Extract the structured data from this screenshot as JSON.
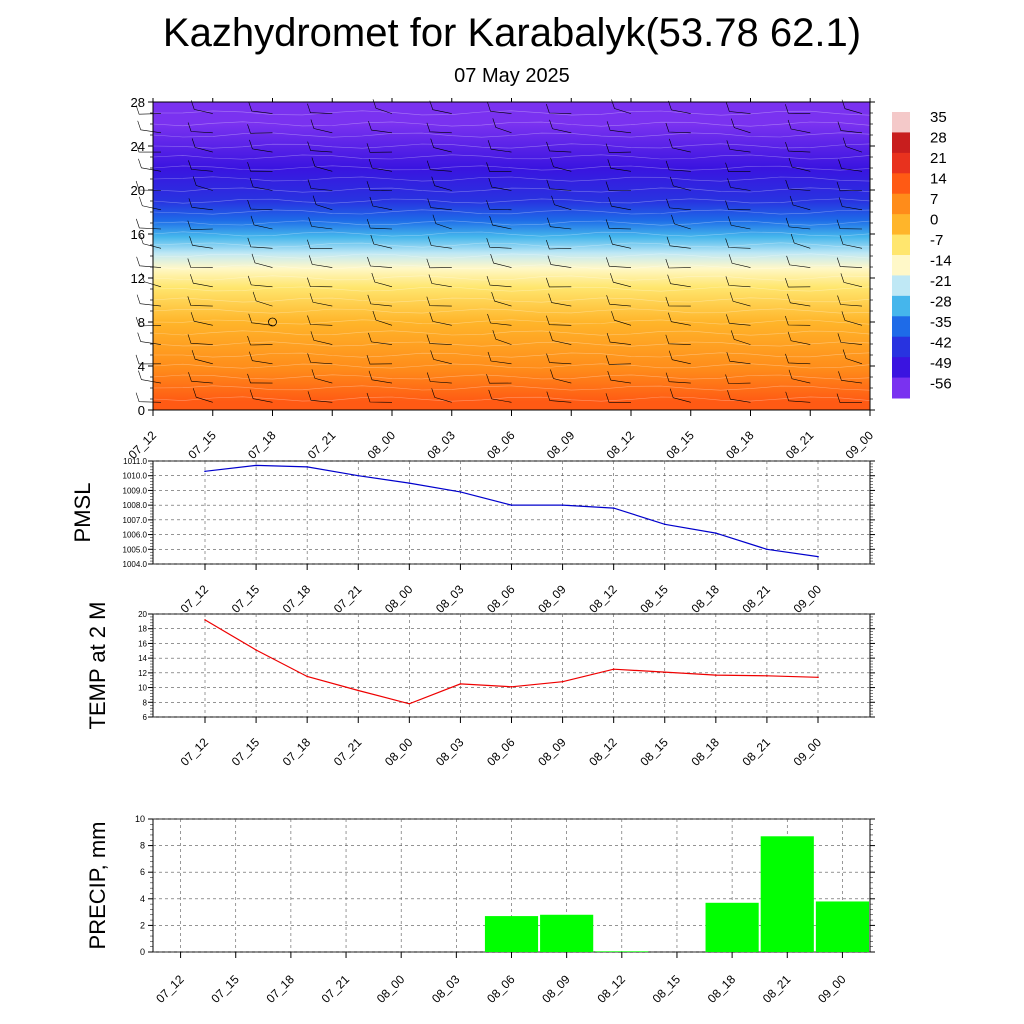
{
  "title": "Kazhydromet for Karabalyk(53.78 62.1)",
  "subtitle": "07 May 2025",
  "colorbar": {
    "labels": [
      "35",
      "28",
      "21",
      "14",
      "7",
      "0",
      "-7",
      "-14",
      "-21",
      "-28",
      "-35",
      "-42",
      "-49",
      "-56"
    ],
    "colors": [
      "#f4c9c9",
      "#c81e1e",
      "#e8321e",
      "#ff5a14",
      "#ff8c1a",
      "#ffb52a",
      "#ffe66e",
      "#fff8c8",
      "#bfe8f5",
      "#45b6ec",
      "#1e6be8",
      "#2833e0",
      "#3a14e0",
      "#7a32f0"
    ]
  },
  "chart_data": [
    {
      "type": "heatmap",
      "title": "",
      "xlabel": "",
      "ylabel": "",
      "x": [
        "07_12",
        "07_15",
        "07_18",
        "07_21",
        "08_00",
        "08_03",
        "08_06",
        "08_09",
        "08_12",
        "08_15",
        "08_18",
        "08_21",
        "09_00"
      ],
      "y_ticks": [
        0,
        4,
        8,
        12,
        16,
        20,
        24,
        28
      ],
      "ylim": [
        0,
        28
      ],
      "field": "temperature (color shading) with wind barbs",
      "color_bands": [
        {
          "from": 0,
          "to": 1.5,
          "value": 14
        },
        {
          "from": 1.5,
          "to": 6,
          "value": 7
        },
        {
          "from": 6,
          "to": 10,
          "value": 0
        },
        {
          "from": 10,
          "to": 12.3,
          "value": -7
        },
        {
          "from": 12.3,
          "to": 13.5,
          "value": -14
        },
        {
          "from": 13.5,
          "to": 15,
          "value": -21
        },
        {
          "from": 15,
          "to": 16.5,
          "value": -28
        },
        {
          "from": 16.5,
          "to": 18,
          "value": -35
        },
        {
          "from": 18,
          "to": 20,
          "value": -42
        },
        {
          "from": 20,
          "to": 24,
          "value": -49
        },
        {
          "from": 24,
          "to": 28,
          "value": -56
        }
      ]
    },
    {
      "type": "line",
      "ylabel": "PMSL",
      "x": [
        "07_12",
        "07_15",
        "07_18",
        "07_21",
        "08_00",
        "08_03",
        "08_06",
        "08_09",
        "08_12",
        "08_15",
        "08_18",
        "08_21",
        "09_00"
      ],
      "series": [
        {
          "values": [
            1010.3,
            1010.7,
            1010.6,
            1010.0,
            1009.5,
            1008.9,
            1008.0,
            1008.0,
            1007.8,
            1006.7,
            1006.1,
            1005.0,
            1004.5
          ]
        }
      ],
      "y_ticks": [
        "1004.0",
        "1005.0",
        "1006.0",
        "1007.0",
        "1008.0",
        "1009.0",
        "1010.0",
        "1011.0"
      ],
      "ylim": [
        1004,
        1011
      ],
      "color": "#0000cc",
      "grid": true
    },
    {
      "type": "line",
      "ylabel": "TEMP at 2 M",
      "x": [
        "07_12",
        "07_15",
        "07_18",
        "07_21",
        "08_00",
        "08_03",
        "08_06",
        "08_09",
        "08_12",
        "08_15",
        "08_18",
        "08_21",
        "09_00"
      ],
      "series": [
        {
          "values": [
            19.2,
            15.1,
            11.5,
            9.6,
            7.8,
            10.5,
            10.1,
            10.8,
            12.5,
            12.1,
            11.7,
            11.6,
            11.4
          ]
        }
      ],
      "y_ticks": [
        "6",
        "8",
        "10",
        "12",
        "14",
        "16",
        "18",
        "20"
      ],
      "ylim": [
        6,
        20
      ],
      "color": "#ee0000",
      "grid": true
    },
    {
      "type": "bar",
      "ylabel": "PRECIP, mm",
      "categories": [
        "07_12",
        "07_15",
        "07_18",
        "07_21",
        "08_00",
        "08_03",
        "08_06",
        "08_09",
        "08_12",
        "08_15",
        "08_18",
        "08_21",
        "09_00"
      ],
      "values": [
        0,
        0,
        0,
        0,
        0,
        0,
        2.7,
        2.8,
        0.05,
        0,
        3.7,
        8.7,
        3.8
      ],
      "y_ticks": [
        "0",
        "2",
        "4",
        "6",
        "8",
        "10"
      ],
      "ylim": [
        0,
        10
      ],
      "color": "#00ff00",
      "grid": true
    }
  ]
}
